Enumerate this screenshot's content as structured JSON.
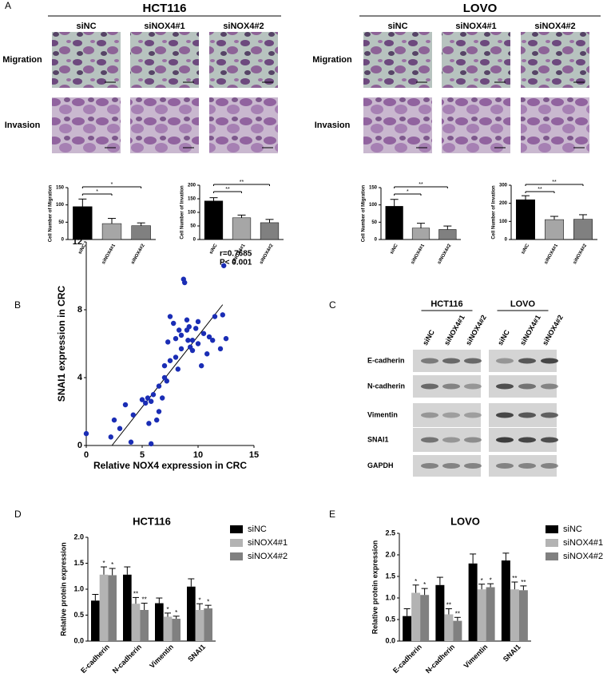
{
  "panel_labels": [
    "A",
    "B",
    "C",
    "D",
    "E"
  ],
  "panel_a": {
    "cell_lines": [
      "HCT116",
      "LOVO"
    ],
    "conditions": [
      "siNC",
      "siNOX4#1",
      "siNOX4#2"
    ],
    "rows": [
      "Migration",
      "Invasion"
    ]
  },
  "panel_c": {
    "cell_lines": [
      "HCT116",
      "LOVO"
    ],
    "lanes": [
      "siNC",
      "siNOX4#1",
      "siNOX4#2"
    ],
    "proteins": [
      "E-cadherin",
      "N-cadherin",
      "Vimentin",
      "SNAI1",
      "GAPDH"
    ]
  },
  "chart_data": [
    {
      "type": "bar",
      "categories": [
        "siNC",
        "siNOX4#1",
        "siNOX4#2"
      ],
      "values": [
        95,
        46,
        40
      ],
      "errors": [
        22,
        15,
        8
      ],
      "colors": [
        "#000000",
        "#a6a6a6",
        "#808080"
      ],
      "ylim": [
        0,
        150
      ],
      "yticks": [
        0,
        50,
        100,
        150
      ],
      "ylabel": "Cell Number of Migration",
      "significance": [
        "*",
        "*"
      ]
    },
    {
      "type": "bar",
      "categories": [
        "siNC",
        "siNOX4#1",
        "siNOX4#2"
      ],
      "values": [
        142,
        80,
        62
      ],
      "errors": [
        12,
        10,
        12
      ],
      "colors": [
        "#000000",
        "#a6a6a6",
        "#808080"
      ],
      "ylim": [
        0,
        200
      ],
      "yticks": [
        0,
        50,
        100,
        150,
        200
      ],
      "ylabel": "Cell Number of Invation",
      "significance": [
        "**",
        "**"
      ]
    },
    {
      "type": "bar",
      "categories": [
        "siNC",
        "siNOX4#1",
        "siNOX4#2"
      ],
      "values": [
        96,
        33,
        29
      ],
      "errors": [
        20,
        14,
        10
      ],
      "colors": [
        "#000000",
        "#a6a6a6",
        "#808080"
      ],
      "ylim": [
        0,
        150
      ],
      "yticks": [
        0,
        50,
        100,
        150
      ],
      "ylabel": "Cell Number of Migration",
      "significance": [
        "*",
        "**"
      ]
    },
    {
      "type": "bar",
      "categories": [
        "siNC",
        "siNOX4#1",
        "siNOX4#2"
      ],
      "values": [
        220,
        110,
        112
      ],
      "errors": [
        22,
        18,
        25
      ],
      "colors": [
        "#000000",
        "#a6a6a6",
        "#808080"
      ],
      "ylim": [
        0,
        300
      ],
      "yticks": [
        0,
        100,
        200,
        300
      ],
      "ylabel": "Cell Number of Invation",
      "significance": [
        "**",
        "**"
      ]
    },
    {
      "type": "scatter",
      "xlabel": "Relative NOX4 expression in CRC",
      "ylabel": "SNAI1 expression in CRC",
      "color": "#1a2db5",
      "x": [
        0,
        2.2,
        2.5,
        3,
        3.5,
        4,
        4.2,
        5,
        5.3,
        5.5,
        5.6,
        5.8,
        6,
        6.3,
        6.5,
        6.5,
        6.8,
        7,
        7,
        7.2,
        7.3,
        7.5,
        7.5,
        7.8,
        8,
        8,
        8.2,
        8.3,
        8.5,
        8.5,
        8.8,
        9,
        9,
        9.2,
        9.3,
        9.5,
        9.5,
        9.8,
        10,
        10,
        10.3,
        10.5,
        10.8,
        11,
        11.3,
        11.5,
        12,
        12.2,
        12.5,
        8.7,
        9.1,
        5.8,
        12.3
      ],
      "y": [
        0.7,
        0.5,
        1.5,
        1.0,
        2.4,
        0.2,
        1.8,
        2.7,
        2.5,
        2.8,
        1.3,
        2.6,
        3.0,
        1.5,
        2.0,
        3.5,
        2.8,
        4.7,
        4.0,
        3.8,
        6.1,
        5.0,
        7.6,
        7.2,
        6.3,
        5.2,
        4.5,
        6.8,
        5.7,
        6.5,
        9.6,
        6.8,
        7.4,
        7.0,
        5.8,
        6.2,
        5.6,
        6.9,
        7.3,
        6.0,
        4.7,
        6.6,
        5.4,
        6.4,
        6.2,
        7.6,
        5.7,
        7.7,
        6.3,
        9.8,
        6.2,
        0.1,
        10.6
      ],
      "trendline": {
        "x": [
          2.3,
          12.2
        ],
        "y": [
          0,
          8.3
        ]
      },
      "xlim": [
        0,
        15
      ],
      "xticks": [
        0,
        5,
        10,
        15
      ],
      "ylim": [
        0,
        12
      ],
      "yticks": [
        0,
        4,
        8,
        12
      ],
      "annotations": [
        "r=0.7685",
        "P< 0.001"
      ]
    },
    {
      "type": "grouped_bar",
      "title": "HCT116",
      "categories": [
        "E-cadherin",
        "N-cadherin",
        "Vimentin",
        "SNAI1"
      ],
      "series": [
        {
          "name": "siNC",
          "color": "#000000",
          "values": [
            0.78,
            1.28,
            0.73,
            1.05
          ],
          "errors": [
            0.12,
            0.15,
            0.1,
            0.15
          ]
        },
        {
          "name": "siNOX4#1",
          "color": "#b3b3b3",
          "values": [
            1.28,
            0.72,
            0.47,
            0.6
          ],
          "errors": [
            0.15,
            0.12,
            0.07,
            0.12
          ],
          "stars": [
            "*",
            "**",
            "*",
            "*"
          ]
        },
        {
          "name": "siNOX4#2",
          "color": "#808080",
          "values": [
            1.27,
            0.6,
            0.43,
            0.63
          ],
          "errors": [
            0.13,
            0.13,
            0.05,
            0.06
          ],
          "stars": [
            "*",
            "**",
            "*",
            "*"
          ]
        }
      ],
      "ylim": [
        0,
        2
      ],
      "yticks": [
        {
          "value": 0,
          "label": "0.0"
        },
        0.5,
        {
          "value": 1,
          "label": "1.0"
        },
        1.5,
        {
          "value": 2,
          "label": "2.0"
        }
      ],
      "ylabel": "Relative protein expression"
    },
    {
      "type": "grouped_bar",
      "title": "LOVO",
      "categories": [
        "E-cadherin",
        "N-cadherin",
        "Vimentin",
        "SNAI1"
      ],
      "series": [
        {
          "name": "siNC",
          "color": "#000000",
          "values": [
            0.58,
            1.3,
            1.8,
            1.87
          ],
          "errors": [
            0.17,
            0.18,
            0.22,
            0.17
          ]
        },
        {
          "name": "siNOX4#1",
          "color": "#b3b3b3",
          "values": [
            1.12,
            0.62,
            1.2,
            1.2
          ],
          "errors": [
            0.18,
            0.13,
            0.12,
            0.17
          ],
          "stars": [
            "*",
            "**",
            "*",
            "**"
          ]
        },
        {
          "name": "siNOX4#2",
          "color": "#808080",
          "values": [
            1.07,
            0.47,
            1.25,
            1.18
          ],
          "errors": [
            0.15,
            0.08,
            0.08,
            0.1
          ],
          "stars": [
            "*",
            "**",
            "*",
            "**"
          ]
        }
      ],
      "ylim": [
        0,
        2.5
      ],
      "yticks": [
        {
          "value": 0,
          "label": "0.0"
        },
        0.5,
        {
          "value": 1,
          "label": "1.0"
        },
        1.5,
        {
          "value": 2,
          "label": "2.0"
        },
        2.5
      ],
      "ylabel": "Relative protein expression"
    }
  ]
}
